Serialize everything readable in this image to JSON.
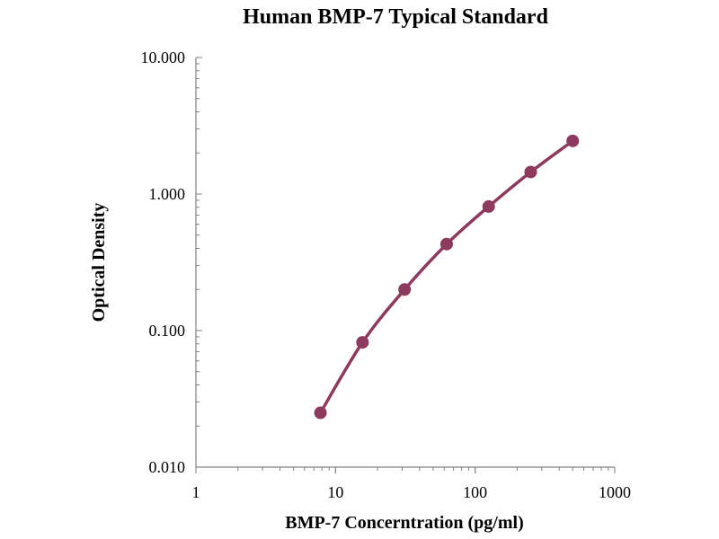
{
  "chart_data": {
    "type": "scatter",
    "title": "Human BMP-7 Typical Standard",
    "xlabel": "BMP-7 Concerntration (pg/ml)",
    "ylabel": "Optical Density",
    "x_scale": "log",
    "y_scale": "log",
    "xlim": [
      1,
      1000
    ],
    "ylim": [
      0.01,
      10
    ],
    "x_ticks": [
      "1",
      "10",
      "100",
      "1000"
    ],
    "y_ticks": [
      "0.010",
      "0.100",
      "1.000",
      "10.000"
    ],
    "grid": false,
    "legend": "none",
    "series": [
      {
        "color": "#8e3a5e",
        "fit_line": true,
        "x": [
          7.8,
          15.6,
          31.25,
          62.5,
          125,
          250,
          500
        ],
        "y": [
          0.025,
          0.082,
          0.2,
          0.43,
          0.81,
          1.45,
          2.45
        ]
      }
    ]
  }
}
